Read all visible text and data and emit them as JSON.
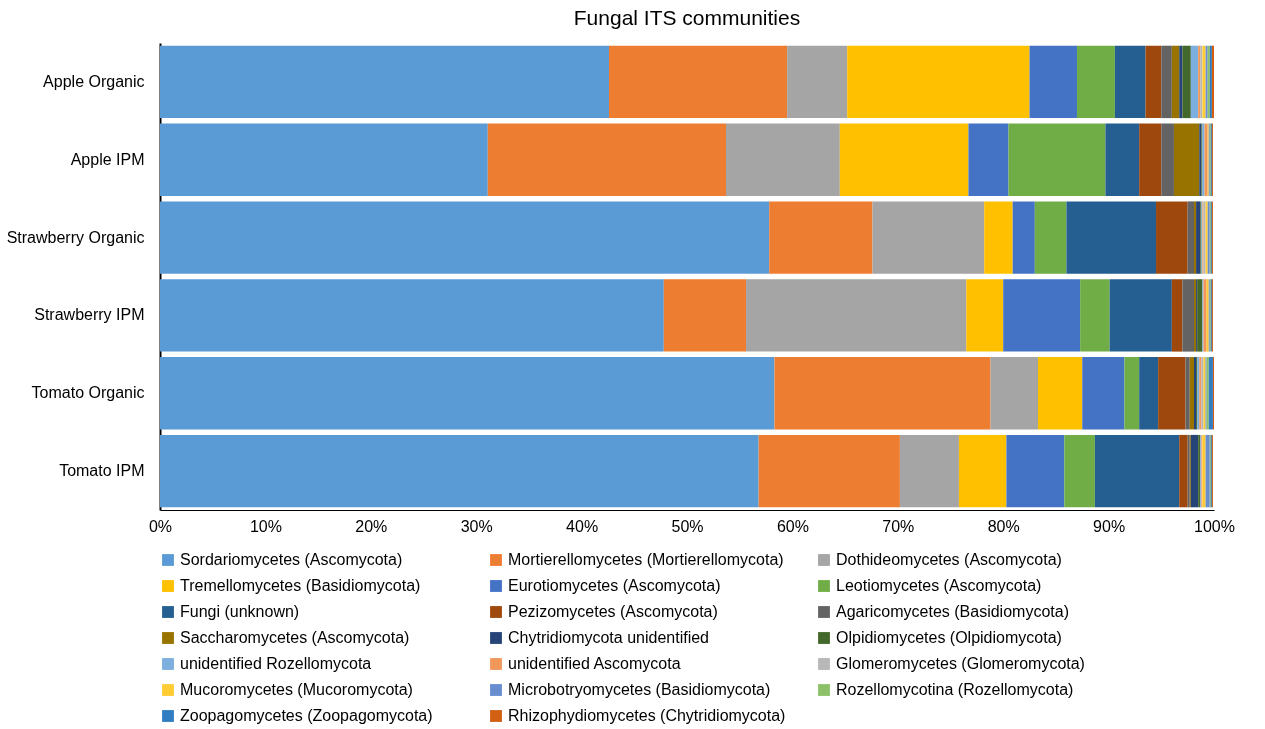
{
  "chart_data": {
    "type": "bar",
    "orientation": "horizontal",
    "stacked": true,
    "title": "Fungal ITS communities",
    "categories": [
      "Apple Organic",
      "Apple IPM",
      "Strawberry Organic",
      "Strawberry IPM",
      "Tomato Organic",
      "Tomato IPM"
    ],
    "xlim": [
      0,
      100
    ],
    "xticks": [
      {
        "value": 0,
        "label": "0%"
      },
      {
        "value": 10,
        "label": "10%"
      },
      {
        "value": 20,
        "label": "20%"
      },
      {
        "value": 30,
        "label": "30%"
      },
      {
        "value": 40,
        "label": "40%"
      },
      {
        "value": 50,
        "label": "50%"
      },
      {
        "value": 60,
        "label": "60%"
      },
      {
        "value": 70,
        "label": "70%"
      },
      {
        "value": 80,
        "label": "80%"
      },
      {
        "value": 90,
        "label": "90%"
      },
      {
        "value": 100,
        "label": "100%"
      }
    ],
    "grid": false,
    "legend": "bottom",
    "series": [
      {
        "name": "Sordariomycetes (Ascomycota)",
        "color": "#5b9bd5",
        "values": [
          42.6,
          31.1,
          57.8,
          47.8,
          58.3,
          56.8
        ]
      },
      {
        "name": "Mortierellomycetes (Mortierellomycota)",
        "color": "#ed7d31",
        "values": [
          16.9,
          22.6,
          9.8,
          7.8,
          20.5,
          13.4
        ]
      },
      {
        "name": "Dothideomycetes (Ascomycota)",
        "color": "#a5a5a5",
        "values": [
          5.7,
          10.8,
          10.6,
          20.9,
          4.5,
          5.6
        ]
      },
      {
        "name": "Tremellomycetes (Basidiomycota)",
        "color": "#ffc000",
        "values": [
          17.3,
          12.2,
          2.7,
          3.5,
          4.2,
          4.5
        ]
      },
      {
        "name": "Eurotiomycetes (Ascomycota)",
        "color": "#4472c4",
        "values": [
          4.5,
          3.8,
          2.1,
          7.3,
          4.0,
          5.5
        ]
      },
      {
        "name": "Leotiomycetes (Ascomycota)",
        "color": "#70ad47",
        "values": [
          3.6,
          9.2,
          3.0,
          2.8,
          1.4,
          2.9
        ]
      },
      {
        "name": "Fungi (unknown)",
        "color": "#255e91",
        "values": [
          2.9,
          3.2,
          8.5,
          5.9,
          1.8,
          8.0
        ]
      },
      {
        "name": "Pezizomycetes (Ascomycota)",
        "color": "#9e480e",
        "values": [
          1.5,
          2.1,
          3.0,
          1.0,
          2.6,
          0.8
        ]
      },
      {
        "name": "Agaricomycetes (Basidiomycota)",
        "color": "#636363",
        "values": [
          1.0,
          1.2,
          0.6,
          1.1,
          0.4,
          0.2
        ]
      },
      {
        "name": "Saccharomycetes (Ascomycota)",
        "color": "#997300",
        "values": [
          0.7,
          2.4,
          0.2,
          0.2,
          0.4,
          0.1
        ]
      },
      {
        "name": "Chytridiomycota unidentified",
        "color": "#264478",
        "values": [
          0.3,
          0.2,
          0.4,
          0.1,
          0.2,
          0.7
        ]
      },
      {
        "name": "Olpidiomycetes (Olpidiomycota)",
        "color": "#43682b",
        "values": [
          0.8,
          0.1,
          0.1,
          0.5,
          0.1,
          0.2
        ]
      },
      {
        "name": "unidentified Rozellomycota",
        "color": "#7cafdd",
        "values": [
          0.7,
          0.2,
          0.1,
          0.1,
          0.2,
          0.1
        ]
      },
      {
        "name": "unidentified Ascomycota",
        "color": "#f1975a",
        "values": [
          0.2,
          0.3,
          0.1,
          0.3,
          0.2,
          0.1
        ]
      },
      {
        "name": "Glomeromycetes (Glomeromycota)",
        "color": "#b7b7b7",
        "values": [
          0.2,
          null,
          0.2,
          null,
          0.2,
          null
        ]
      },
      {
        "name": "Mucoromycetes (Mucoromycota)",
        "color": "#ffcd33",
        "values": [
          0.3,
          0.1,
          0.2,
          0.2,
          0.2,
          0.3
        ]
      },
      {
        "name": "Microbotryomycetes (Basidiomycota)",
        "color": "#698ed0",
        "values": [
          0.2,
          0.1,
          0.2,
          0.1,
          0.1,
          0.4
        ]
      },
      {
        "name": "Rozellomycotina (Rozellomycota)",
        "color": "#8cc168",
        "values": [
          0.2,
          0.1,
          0.1,
          0.1,
          0.2,
          0.1
        ]
      },
      {
        "name": "Zoopagomycetes (Zoopagomycota)",
        "color": "#327dc2",
        "values": [
          0.2,
          0.1,
          0.1,
          0.1,
          0.4,
          0.1
        ]
      },
      {
        "name": "Rhizophydiomycetes (Chytridiomycota)",
        "color": "#d26012",
        "values": [
          0.2,
          0.1,
          0.1,
          0.1,
          0.1,
          0.1
        ]
      }
    ]
  }
}
